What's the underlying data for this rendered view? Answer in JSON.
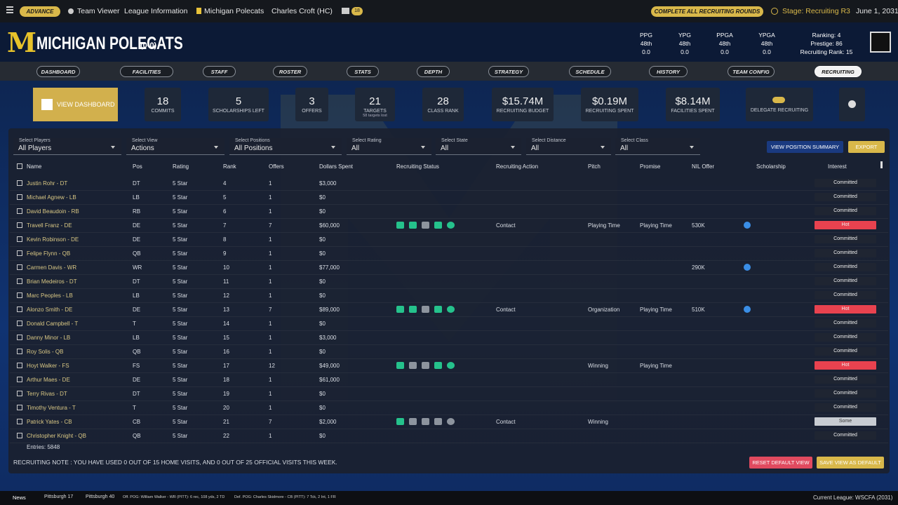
{
  "topbar": {
    "advance": "ADVANCE",
    "team_viewer": "Team Viewer",
    "league_info": "League Information",
    "team": "Michigan Polecats",
    "coach": "Charles Croft (HC)",
    "mail_count": "18",
    "complete": "COMPLETE ALL RECRUITING ROUNDS",
    "stage": "Stage: Recruiting R3",
    "date": "June 1, 2031"
  },
  "header": {
    "logo": "M",
    "team_name": "MICHIGAN POLECATS",
    "record": "(0-0)",
    "stats": [
      {
        "label": "PPG",
        "rank": "48th",
        "value": "0.0"
      },
      {
        "label": "YPG",
        "rank": "48th",
        "value": "0.0"
      },
      {
        "label": "PPGA",
        "rank": "48th",
        "value": "0.0"
      },
      {
        "label": "YPGA",
        "rank": "48th",
        "value": "0.0"
      }
    ],
    "ranking": "Ranking: 4",
    "prestige": "Prestige: 86",
    "recruiting_rank": "Recruiting Rank: 15"
  },
  "nav": {
    "items": [
      "DASHBOARD",
      "FACILITIES",
      "STAFF",
      "ROSTER",
      "STATS",
      "DEPTH",
      "STRATEGY",
      "SCHEDULE",
      "HISTORY",
      "TEAM CONFIG",
      "RECRUITING"
    ],
    "active": 10
  },
  "summary": {
    "view_dashboard": "VIEW DASHBOARD",
    "cards": [
      {
        "value": "18",
        "label": "COMMITS"
      },
      {
        "value": "5",
        "label": "SCHOLARSHIPS LEFT"
      },
      {
        "value": "3",
        "label": "OFFERS"
      },
      {
        "value": "21",
        "label": "TARGETS",
        "sub": "58 targets lost"
      },
      {
        "value": "28",
        "label": "CLASS RANK"
      },
      {
        "value": "$15.74M",
        "label": "RECRUITING BUDGET"
      },
      {
        "value": "$0.19M",
        "label": "RECRUITING SPENT"
      },
      {
        "value": "$8.14M",
        "label": "FACILITIES SPENT"
      }
    ],
    "delegate": "DELEGATE RECRUITING"
  },
  "filters": {
    "items": [
      {
        "label": "Select Players",
        "value": "All Players"
      },
      {
        "label": "Select View",
        "value": "Actions"
      },
      {
        "label": "Select Positions",
        "value": "All Positions"
      },
      {
        "label": "Select Rating",
        "value": "All"
      },
      {
        "label": "Select State",
        "value": "All"
      },
      {
        "label": "Select Distance",
        "value": "All"
      },
      {
        "label": "Select Class",
        "value": "All"
      }
    ],
    "position_summary": "VIEW POSITION SUMMARY",
    "export": "EXPORT"
  },
  "table": {
    "columns": [
      "Name",
      "Pos",
      "Rating",
      "Rank",
      "Offers",
      "Dollars Spent",
      "Recruiting Status",
      "Recruiting Action",
      "Pitch",
      "Promise",
      "NIL Offer",
      "Scholarship",
      "Interest"
    ],
    "rows": [
      {
        "name": "Justin Rohr - DT",
        "pos": "DT",
        "rating": "5 Star",
        "rank": 4,
        "offers": 1,
        "dollars": "$3,000",
        "interest": "Committed"
      },
      {
        "name": "Michael Agnew - LB",
        "pos": "LB",
        "rating": "5 Star",
        "rank": 5,
        "offers": 1,
        "dollars": "$0",
        "interest": "Committed"
      },
      {
        "name": "David Beaudoin - RB",
        "pos": "RB",
        "rating": "5 Star",
        "rank": 6,
        "offers": 1,
        "dollars": "$0",
        "interest": "Committed"
      },
      {
        "name": "Travell Franz - DE",
        "pos": "DE",
        "rating": "5 Star",
        "rank": 7,
        "offers": 7,
        "dollars": "$60,000",
        "status": true,
        "action": "Contact",
        "pitch": "Playing Time",
        "promise": "Playing Time",
        "nil": "530K",
        "scholarship": true,
        "interest": "Hot",
        "interest_color": "#e8424f"
      },
      {
        "name": "Kevin Robinson - DE",
        "pos": "DE",
        "rating": "5 Star",
        "rank": 8,
        "offers": 1,
        "dollars": "$0",
        "interest": "Committed"
      },
      {
        "name": "Felipe Flynn - QB",
        "pos": "QB",
        "rating": "5 Star",
        "rank": 9,
        "offers": 1,
        "dollars": "$0",
        "interest": "Committed"
      },
      {
        "name": "Carmen Davis - WR",
        "pos": "WR",
        "rating": "5 Star",
        "rank": 10,
        "offers": 1,
        "dollars": "$77,000",
        "nil": "290K",
        "scholarship": true,
        "interest": "Committed"
      },
      {
        "name": "Brian Medeiros - DT",
        "pos": "DT",
        "rating": "5 Star",
        "rank": 11,
        "offers": 1,
        "dollars": "$0",
        "interest": "Committed"
      },
      {
        "name": "Marc Peoples - LB",
        "pos": "LB",
        "rating": "5 Star",
        "rank": 12,
        "offers": 1,
        "dollars": "$0",
        "interest": "Committed"
      },
      {
        "name": "Alonzo Smith - DE",
        "pos": "DE",
        "rating": "5 Star",
        "rank": 13,
        "offers": 7,
        "dollars": "$89,000",
        "status": true,
        "action": "Contact",
        "pitch": "Organization",
        "promise": "Playing Time",
        "nil": "510K",
        "scholarship": true,
        "interest": "Hot",
        "interest_color": "#e8424f"
      },
      {
        "name": "Donald Campbell - T",
        "pos": "T",
        "rating": "5 Star",
        "rank": 14,
        "offers": 1,
        "dollars": "$0",
        "interest": "Committed"
      },
      {
        "name": "Danny Minor - LB",
        "pos": "LB",
        "rating": "5 Star",
        "rank": 15,
        "offers": 1,
        "dollars": "$3,000",
        "interest": "Committed"
      },
      {
        "name": "Roy Solis - QB",
        "pos": "QB",
        "rating": "5 Star",
        "rank": 16,
        "offers": 1,
        "dollars": "$0",
        "interest": "Committed"
      },
      {
        "name": "Hoyt Walker - FS",
        "pos": "FS",
        "rating": "5 Star",
        "rank": 17,
        "offers": 12,
        "dollars": "$49,000",
        "status": true,
        "pitch": "Winning",
        "promise": "Playing Time",
        "interest": "Hot",
        "interest_color": "#e8424f"
      },
      {
        "name": "Arthur Maes - DE",
        "pos": "DE",
        "rating": "5 Star",
        "rank": 18,
        "offers": 1,
        "dollars": "$61,000",
        "interest": "Committed"
      },
      {
        "name": "Terry Rivas - DT",
        "pos": "DT",
        "rating": "5 Star",
        "rank": 19,
        "offers": 1,
        "dollars": "$0",
        "interest": "Committed"
      },
      {
        "name": "Timothy Ventura - T",
        "pos": "T",
        "rating": "5 Star",
        "rank": 20,
        "offers": 1,
        "dollars": "$0",
        "interest": "Committed"
      },
      {
        "name": "Patrick Yates - CB",
        "pos": "CB",
        "rating": "5 Star",
        "rank": 21,
        "offers": 7,
        "dollars": "$2,000",
        "status": true,
        "action": "Contact",
        "pitch": "Winning",
        "interest": "Some",
        "interest_color": "#c8ccd2"
      },
      {
        "name": "Christopher Knight - QB",
        "pos": "QB",
        "rating": "5 Star",
        "rank": 22,
        "offers": 1,
        "dollars": "$0",
        "interest": "Committed"
      }
    ],
    "entries": "Entries: 5848"
  },
  "bottom": {
    "note": "RECRUITING NOTE : YOU HAVE USED 0 OUT OF 15 HOME VISITS, AND 0 OUT OF 25 OFFICIAL VISITS THIS WEEK.",
    "reset": "RESET DEFAULT VIEW",
    "save": "SAVE VIEW AS DEFAULT"
  },
  "footer": {
    "news": "News",
    "score1": "Pittsburgh 17",
    "score2": "Pittsburgh 40",
    "off_pog": "Off. POG: William Walker - WR (PITT): 6 rec, 108 yds, 2 TD",
    "def_pog": "Def. POG: Charles Skidmore - CB (PITT): 7 Tck, 2 Int, 1 FR",
    "league": "Current League: WSCFA (2031)"
  }
}
